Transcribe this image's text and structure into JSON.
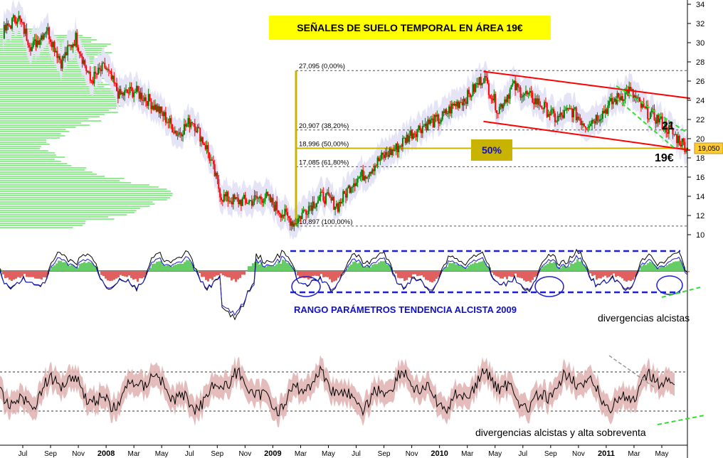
{
  "chart_data": [
    {
      "type": "candlestick",
      "title": "SEÑALES DE SUELO TEMPORAL EN ÁREA 19€",
      "ylim": [
        10,
        34
      ],
      "y_ticks": [
        "10",
        "12",
        "14",
        "16",
        "18",
        "20",
        "22",
        "24",
        "26",
        "28",
        "30",
        "32",
        "34"
      ],
      "last_value_label": "19,050",
      "x_ticks": [
        {
          "label": "Jul",
          "bold": false
        },
        {
          "label": "Sep",
          "bold": false
        },
        {
          "label": "Nov",
          "bold": false
        },
        {
          "label": "2008",
          "bold": true
        },
        {
          "label": "Mar",
          "bold": false
        },
        {
          "label": "May",
          "bold": false
        },
        {
          "label": "Jul",
          "bold": false
        },
        {
          "label": "Sep",
          "bold": false
        },
        {
          "label": "Nov",
          "bold": false
        },
        {
          "label": "2009",
          "bold": true
        },
        {
          "label": "Mar",
          "bold": false
        },
        {
          "label": "May",
          "bold": false
        },
        {
          "label": "Jul",
          "bold": false
        },
        {
          "label": "Sep",
          "bold": false
        },
        {
          "label": "Nov",
          "bold": false
        },
        {
          "label": "2010",
          "bold": true
        },
        {
          "label": "Mar",
          "bold": false
        },
        {
          "label": "May",
          "bold": false
        },
        {
          "label": "Jul",
          "bold": false
        },
        {
          "label": "Sep",
          "bold": false
        },
        {
          "label": "Nov",
          "bold": false
        },
        {
          "label": "2011",
          "bold": true
        },
        {
          "label": "Mar",
          "bold": false
        },
        {
          "label": "May",
          "bold": false
        }
      ],
      "fibonacci_levels": [
        {
          "label": "27,095 (0,00%)",
          "value": 27.095
        },
        {
          "label": "20,907 (38,20%)",
          "value": 20.907
        },
        {
          "label": "18,996 (50,00%)",
          "value": 18.996
        },
        {
          "label": "17,085 (61,80%)",
          "value": 17.085
        },
        {
          "label": "10,897 (100,00%)",
          "value": 10.897
        }
      ],
      "annotations": {
        "fifty_pct": "50%",
        "level_21": "21",
        "level_19": "19€"
      },
      "price_path": [
        [
          "Jul 2007",
          31.0
        ],
        [
          "Aug 2007",
          32.8
        ],
        [
          "Sep 2007",
          29.5
        ],
        [
          "Oct 2007",
          31.5
        ],
        [
          "Nov 2007",
          28.0
        ],
        [
          "Dec 2007",
          30.5
        ],
        [
          "Jan 2008",
          26.0
        ],
        [
          "Feb 2008",
          27.5
        ],
        [
          "Mar 2008",
          24.5
        ],
        [
          "Apr 2008",
          25.0
        ],
        [
          "May 2008",
          24.0
        ],
        [
          "Jun 2008",
          22.5
        ],
        [
          "Jul 2008",
          20.5
        ],
        [
          "Aug 2008",
          22.0
        ],
        [
          "Sep 2008",
          19.0
        ],
        [
          "Oct 2008",
          14.0
        ],
        [
          "Nov 2008",
          13.5
        ],
        [
          "Dec 2008",
          13.5
        ],
        [
          "Jan 2009",
          14.0
        ],
        [
          "Feb 2009",
          12.5
        ],
        [
          "Mar 2009",
          11.2
        ],
        [
          "Apr 2009",
          13.0
        ],
        [
          "May 2009",
          14.0
        ],
        [
          "Jun 2009",
          13.0
        ],
        [
          "Jul 2009",
          15.5
        ],
        [
          "Aug 2009",
          16.5
        ],
        [
          "Sep 2009",
          18.0
        ],
        [
          "Oct 2009",
          19.0
        ],
        [
          "Nov 2009",
          20.5
        ],
        [
          "Dec 2009",
          21.5
        ],
        [
          "Jan 2010",
          22.0
        ],
        [
          "Feb 2010",
          23.5
        ],
        [
          "Mar 2010",
          24.5
        ],
        [
          "Apr 2010",
          26.5
        ],
        [
          "May 2010",
          23.0
        ],
        [
          "Jun 2010",
          25.5
        ],
        [
          "Jul 2010",
          24.5
        ],
        [
          "Aug 2010",
          23.5
        ],
        [
          "Sep 2010",
          22.0
        ],
        [
          "Oct 2010",
          23.0
        ],
        [
          "Nov 2010",
          21.5
        ],
        [
          "Dec 2010",
          22.5
        ],
        [
          "Jan 2011",
          24.0
        ],
        [
          "Feb 2011",
          25.0
        ],
        [
          "Mar 2011",
          23.0
        ],
        [
          "Apr 2011",
          22.0
        ],
        [
          "May 2011",
          20.5
        ],
        [
          "Jun 2011",
          19.05
        ]
      ],
      "trend_channel": {
        "upper": [
          [
            "Apr 2010",
            27.0
          ],
          [
            "Jun 2011",
            24.2
          ]
        ],
        "lower": [
          [
            "Apr 2010",
            21.8
          ],
          [
            "Jun 2011",
            18.8
          ]
        ]
      }
    },
    {
      "type": "line",
      "name": "oscillator",
      "annotations": {
        "range_text": "RANGO PARÁMETROS TENDENCIA ALCISTA 2009",
        "divergences": "divergencias alcistas"
      }
    },
    {
      "type": "line",
      "name": "oscillator-2",
      "annotations": {
        "divergences": "divergencias alcistas y alta sobreventa"
      }
    }
  ],
  "colors": {
    "candle_up": "#008000",
    "candle_down": "#ff0000",
    "volume_profile": "#90ee90",
    "channel": "#ff0000",
    "fib_line": "#c8b400",
    "title_bg": "#ffff00",
    "blue_dash": "#1e1ed2",
    "histogram_pos": "#66cc66",
    "histogram_neg": "#e06060",
    "band_fill": "#dfb0b0",
    "green_dash": "#33dd33"
  }
}
